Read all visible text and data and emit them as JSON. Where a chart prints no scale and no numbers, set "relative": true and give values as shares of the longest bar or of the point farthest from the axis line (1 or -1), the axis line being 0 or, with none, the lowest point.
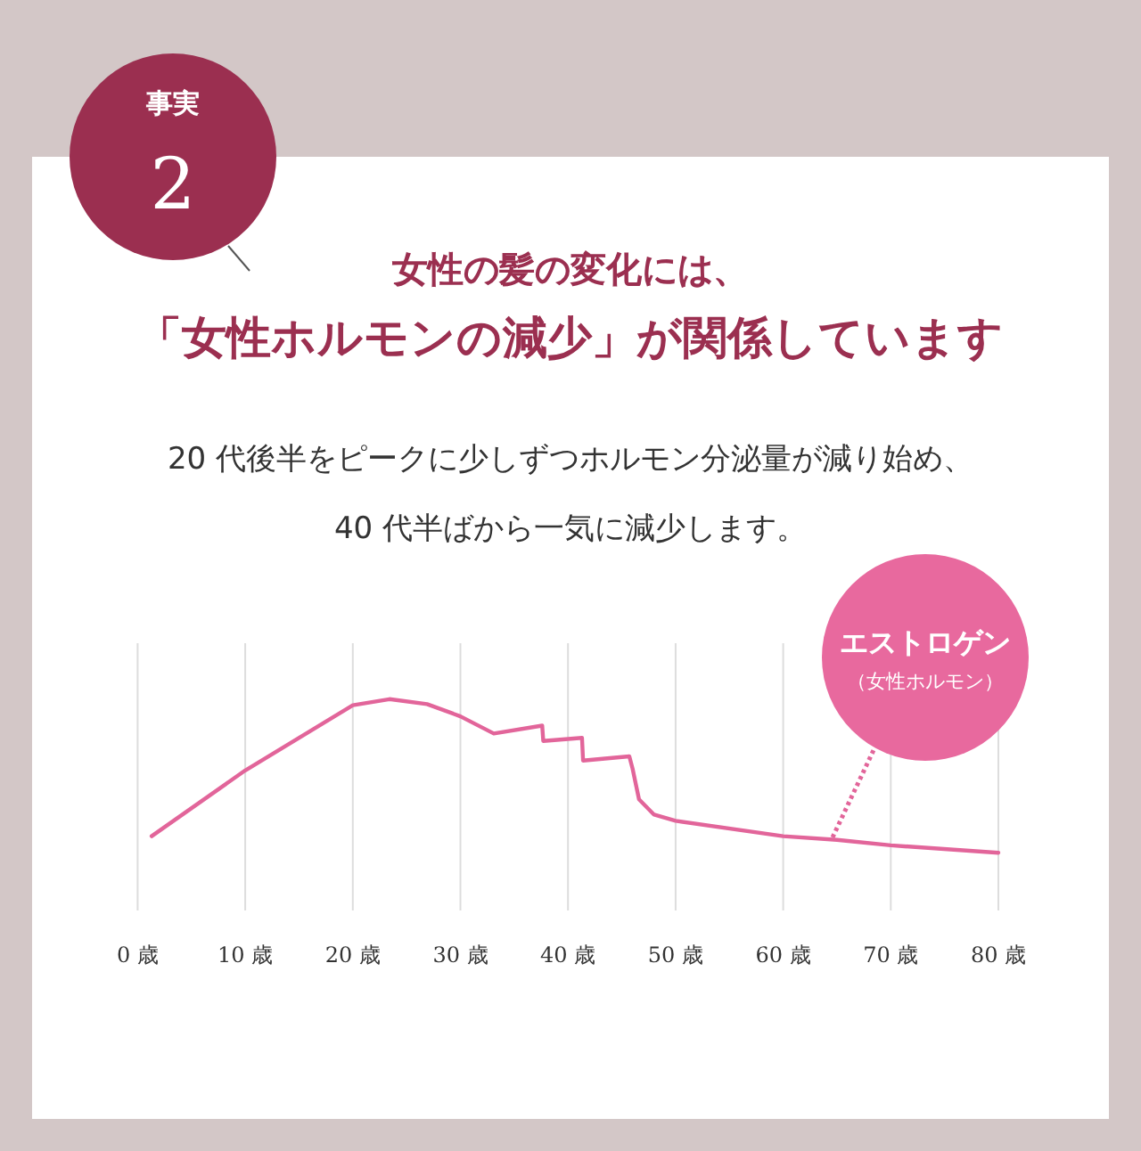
{
  "chart_data": {
    "type": "line",
    "relative": true,
    "title": "女性の髪の変化には、",
    "subtitle": "「女性ホルモンの減少」が関係しています",
    "x": [
      1.3,
      10,
      20,
      23.4,
      26.9,
      30,
      33.1,
      37.6,
      37.7,
      41.3,
      41.4,
      45.7,
      46,
      46.6,
      48,
      50,
      60,
      65,
      70,
      80
    ],
    "xlim": [
      0,
      80
    ],
    "series": [
      {
        "color": "#e2659a",
        "values": [
          0.108,
          0.536,
          0.96,
          1.0,
          0.968,
          0.888,
          0.776,
          0.828,
          0.728,
          0.748,
          0.6,
          0.628,
          0.548,
          0.348,
          0.248,
          0.208,
          0.108,
          0.084,
          0.048,
          0
        ]
      }
    ],
    "xticks": [
      {
        "value": 0,
        "label": "0 歳"
      },
      {
        "value": 10,
        "label": "10 歳"
      },
      {
        "value": 20,
        "label": "20 歳"
      },
      {
        "value": 30,
        "label": "30 歳"
      },
      {
        "value": 40,
        "label": "40 歳"
      },
      {
        "value": 50,
        "label": "50 歳"
      },
      {
        "value": 60,
        "label": "60 歳"
      },
      {
        "value": 70,
        "label": "70 歳"
      },
      {
        "value": 80,
        "label": "80 歳"
      }
    ],
    "grid": "x",
    "marker": "none",
    "line_style": "solid",
    "annotations": [
      "事実",
      "2",
      "20 代後半をピークに少しずつホルモン分泌量が減り始め、",
      "40 代半ばから一気に減少します。",
      "エストロゲン",
      "（女性ホルモン）"
    ]
  }
}
